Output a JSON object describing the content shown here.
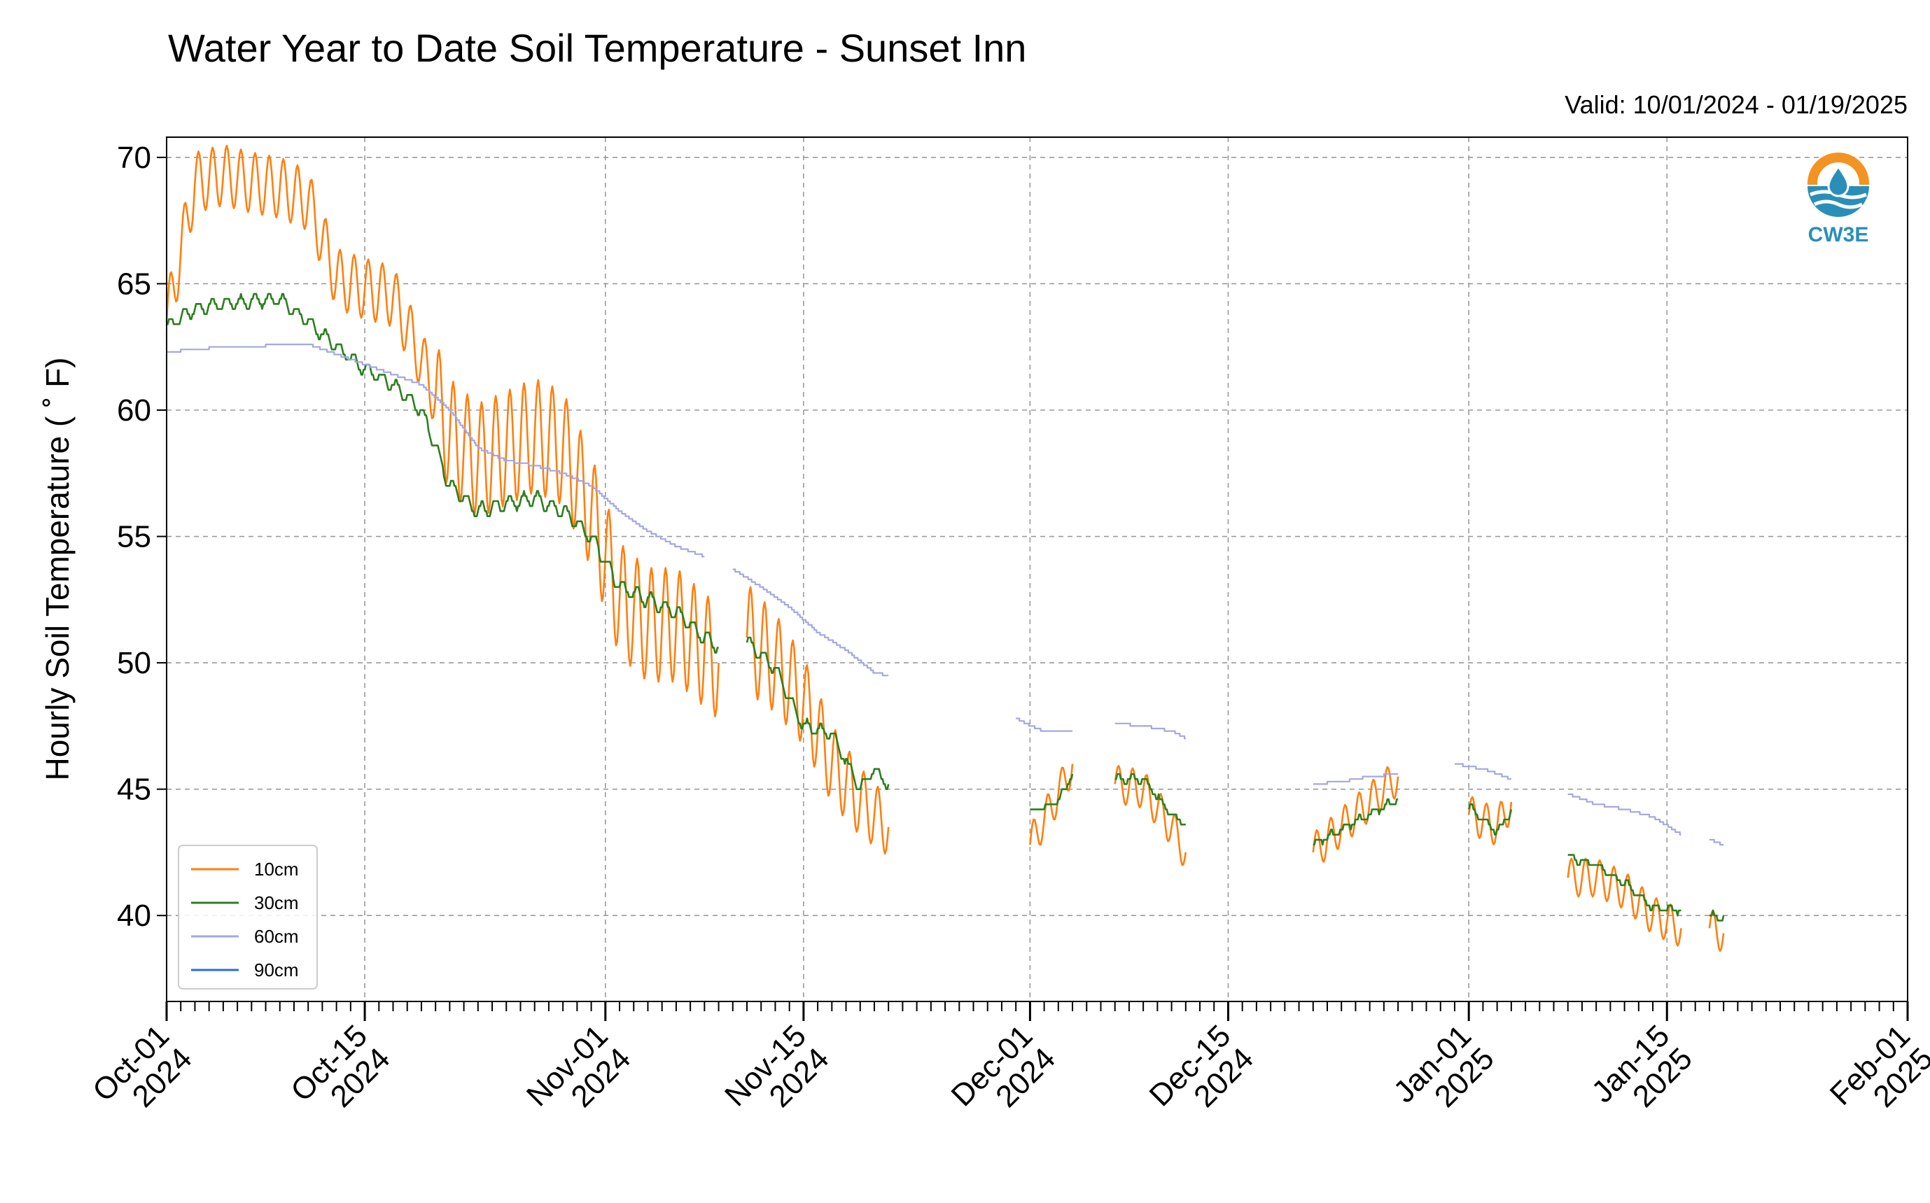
{
  "colors": {
    "10cm": "#ff7f0e",
    "30cm": "#2c7f1f",
    "60cm": "#a3a8e0",
    "90cm": "#2d6bd8",
    "grid": "#9a9a9a",
    "logo_orange": "#f39322",
    "logo_blue": "#2a8fb8"
  },
  "logo": {
    "text": "CW3E",
    "icon": "cw3e-water-drop-logo"
  },
  "chart_data": {
    "type": "line",
    "title": "Water Year to Date Soil Temperature - Sunset Inn",
    "subtitle": "Valid: 10/01/2024 - 01/19/2025",
    "xlabel": "",
    "ylabel": "Hourly Soil Temperature ( ˚ F)",
    "xlim": [
      "2024-10-01",
      "2025-02-01"
    ],
    "ylim": [
      36.6,
      70.8
    ],
    "grid": true,
    "legend_position": "lower-left",
    "y_ticks": [
      40,
      45,
      50,
      55,
      60,
      65,
      70
    ],
    "x_ticks": [
      {
        "date": "2024-10-01",
        "label": [
          "Oct-01",
          "2024"
        ]
      },
      {
        "date": "2024-10-15",
        "label": [
          "Oct-15",
          "2024"
        ]
      },
      {
        "date": "2024-11-01",
        "label": [
          "Nov-01",
          "2024"
        ]
      },
      {
        "date": "2024-11-15",
        "label": [
          "Nov-15",
          "2024"
        ]
      },
      {
        "date": "2024-12-01",
        "label": [
          "Dec-01",
          "2024"
        ]
      },
      {
        "date": "2024-12-15",
        "label": [
          "Dec-15",
          "2024"
        ]
      },
      {
        "date": "2025-01-01",
        "label": [
          "Jan-01",
          "2025"
        ]
      },
      {
        "date": "2025-01-15",
        "label": [
          "Jan-15",
          "2025"
        ]
      },
      {
        "date": "2025-02-01",
        "label": [
          "Feb-01",
          "2025"
        ]
      }
    ],
    "series": [
      {
        "name": "10cm",
        "segments": [
          [
            [
              "2024-10-01",
              63.5
            ],
            [
              "2024-10-03",
              69.0
            ],
            [
              "2024-10-05",
              69.3
            ],
            [
              "2024-10-07",
              69.0
            ],
            [
              "2024-10-09",
              68.8
            ],
            [
              "2024-10-11",
              68.3
            ],
            [
              "2024-10-13",
              65.2
            ],
            [
              "2024-10-15",
              64.8
            ],
            [
              "2024-10-17",
              64.5
            ],
            [
              "2024-10-19",
              62.0
            ],
            [
              "2024-10-21",
              59.0
            ],
            [
              "2024-10-23",
              58.0
            ],
            [
              "2024-10-25",
              58.5
            ],
            [
              "2024-10-27",
              59.0
            ],
            [
              "2024-10-29",
              58.5
            ],
            [
              "2024-10-31",
              56.0
            ],
            [
              "2024-11-02",
              52.5
            ],
            [
              "2024-11-04",
              51.5
            ],
            [
              "2024-11-06",
              51.5
            ],
            [
              "2024-11-08",
              50.5
            ],
            [
              "2024-11-09",
              50.0
            ]
          ],
          [
            [
              "2024-11-11",
              51.0
            ],
            [
              "2024-11-13",
              50.0
            ],
            [
              "2024-11-15",
              48.5
            ],
            [
              "2024-11-17",
              46.0
            ],
            [
              "2024-11-19",
              44.5
            ],
            [
              "2024-11-21",
              43.5
            ]
          ]
        ],
        "daily_swing": [
          2.4,
          4.5,
          1.5
        ],
        "sample_segments": [
          [
            [
              "2024-12-01",
              42.8
            ],
            [
              "2024-12-03",
              44.8
            ],
            [
              "2024-12-04",
              46.0
            ]
          ],
          [
            [
              "2024-12-07",
              45.2
            ],
            [
              "2024-12-09",
              45.0
            ],
            [
              "2024-12-11",
              43.5
            ],
            [
              "2024-12-12",
              42.5
            ]
          ],
          [
            [
              "2024-12-21",
              42.5
            ],
            [
              "2024-12-23",
              43.5
            ],
            [
              "2024-12-25",
              44.5
            ],
            [
              "2024-12-27",
              45.5
            ]
          ],
          [
            [
              "2025-01-01",
              44.0
            ],
            [
              "2025-01-03",
              43.5
            ],
            [
              "2025-01-04",
              44.5
            ]
          ],
          [
            [
              "2025-01-08",
              41.5
            ],
            [
              "2025-01-10",
              41.5
            ],
            [
              "2025-01-12",
              41.0
            ],
            [
              "2025-01-14",
              40.0
            ],
            [
              "2025-01-16",
              39.5
            ]
          ],
          [
            [
              "2025-01-18",
              39.5
            ],
            [
              "2025-01-19",
              39.3
            ]
          ]
        ]
      },
      {
        "name": "30cm",
        "segments": [
          [
            [
              "2024-10-01",
              63.3
            ],
            [
              "2024-10-03",
              64.0
            ],
            [
              "2024-10-05",
              64.2
            ],
            [
              "2024-10-07",
              64.3
            ],
            [
              "2024-10-09",
              64.4
            ],
            [
              "2024-10-11",
              63.5
            ],
            [
              "2024-10-13",
              62.5
            ],
            [
              "2024-10-15",
              61.6
            ],
            [
              "2024-10-17",
              61.0
            ],
            [
              "2024-10-19",
              60.0
            ],
            [
              "2024-10-21",
              57.0
            ],
            [
              "2024-10-23",
              56.0
            ],
            [
              "2024-10-25",
              56.3
            ],
            [
              "2024-10-27",
              56.5
            ],
            [
              "2024-10-29",
              56.0
            ],
            [
              "2024-10-31",
              55.0
            ],
            [
              "2024-11-02",
              53.0
            ],
            [
              "2024-11-04",
              52.5
            ],
            [
              "2024-11-06",
              52.0
            ],
            [
              "2024-11-08",
              51.0
            ],
            [
              "2024-11-09",
              50.7
            ]
          ],
          [
            [
              "2024-11-11",
              50.8
            ],
            [
              "2024-11-13",
              49.8
            ],
            [
              "2024-11-15",
              47.5
            ],
            [
              "2024-11-17",
              47.2
            ],
            [
              "2024-11-19",
              45.0
            ],
            [
              "2024-11-20",
              45.8
            ],
            [
              "2024-11-21",
              45.1
            ]
          ],
          [
            [
              "2024-12-01",
              44.1
            ],
            [
              "2024-12-03",
              44.5
            ],
            [
              "2024-12-04",
              45.6
            ]
          ],
          [
            [
              "2024-12-07",
              45.4
            ],
            [
              "2024-12-09",
              45.4
            ],
            [
              "2024-12-11",
              44.0
            ],
            [
              "2024-12-12",
              43.6
            ]
          ],
          [
            [
              "2024-12-21",
              42.8
            ],
            [
              "2024-12-23",
              43.4
            ],
            [
              "2024-12-25",
              44.0
            ],
            [
              "2024-12-27",
              44.6
            ]
          ],
          [
            [
              "2025-01-01",
              44.3
            ],
            [
              "2025-01-03",
              43.3
            ],
            [
              "2025-01-04",
              44.1
            ]
          ],
          [
            [
              "2025-01-08",
              42.3
            ],
            [
              "2025-01-10",
              42.0
            ],
            [
              "2025-01-12",
              41.3
            ],
            [
              "2025-01-14",
              40.3
            ],
            [
              "2025-01-16",
              40.2
            ]
          ],
          [
            [
              "2025-01-18",
              40.0
            ],
            [
              "2025-01-19",
              39.9
            ]
          ]
        ],
        "daily_swing": [
          0.5,
          0.6,
          0.25
        ]
      },
      {
        "name": "60cm",
        "segments": [
          [
            [
              "2024-10-01",
              62.3
            ],
            [
              "2024-10-05",
              62.5
            ],
            [
              "2024-10-11",
              62.6
            ],
            [
              "2024-10-15",
              61.8
            ],
            [
              "2024-10-19",
              61.0
            ],
            [
              "2024-10-21",
              60.0
            ],
            [
              "2024-10-23",
              58.5
            ],
            [
              "2024-10-25",
              58.0
            ],
            [
              "2024-10-27",
              57.8
            ],
            [
              "2024-10-29",
              57.5
            ],
            [
              "2024-10-31",
              57.0
            ],
            [
              "2024-11-02",
              56.0
            ],
            [
              "2024-11-04",
              55.2
            ],
            [
              "2024-11-06",
              54.6
            ],
            [
              "2024-11-08",
              54.2
            ]
          ],
          [
            [
              "2024-11-10",
              53.7
            ],
            [
              "2024-11-12",
              53.0
            ],
            [
              "2024-11-14",
              52.2
            ],
            [
              "2024-11-16",
              51.2
            ],
            [
              "2024-11-18",
              50.5
            ],
            [
              "2024-11-20",
              49.6
            ],
            [
              "2024-11-21",
              49.5
            ]
          ],
          [
            [
              "2024-11-30",
              47.8
            ],
            [
              "2024-12-01",
              47.5
            ],
            [
              "2024-12-02",
              47.3
            ],
            [
              "2024-12-04",
              47.3
            ]
          ],
          [
            [
              "2024-12-07",
              47.6
            ],
            [
              "2024-12-09",
              47.5
            ],
            [
              "2024-12-11",
              47.3
            ],
            [
              "2024-12-12",
              47.0
            ]
          ],
          [
            [
              "2024-12-21",
              45.2
            ],
            [
              "2024-12-23",
              45.3
            ],
            [
              "2024-12-25",
              45.5
            ],
            [
              "2024-12-27",
              45.6
            ]
          ],
          [
            [
              "2024-12-31",
              46.0
            ],
            [
              "2025-01-02",
              45.8
            ],
            [
              "2025-01-04",
              45.4
            ]
          ],
          [
            [
              "2025-01-08",
              44.8
            ],
            [
              "2025-01-10",
              44.4
            ],
            [
              "2025-01-12",
              44.2
            ],
            [
              "2025-01-14",
              43.9
            ],
            [
              "2025-01-16",
              43.2
            ]
          ],
          [
            [
              "2025-01-18",
              43.0
            ],
            [
              "2025-01-19",
              42.8
            ]
          ]
        ]
      },
      {
        "name": "90cm",
        "segments": []
      }
    ]
  }
}
